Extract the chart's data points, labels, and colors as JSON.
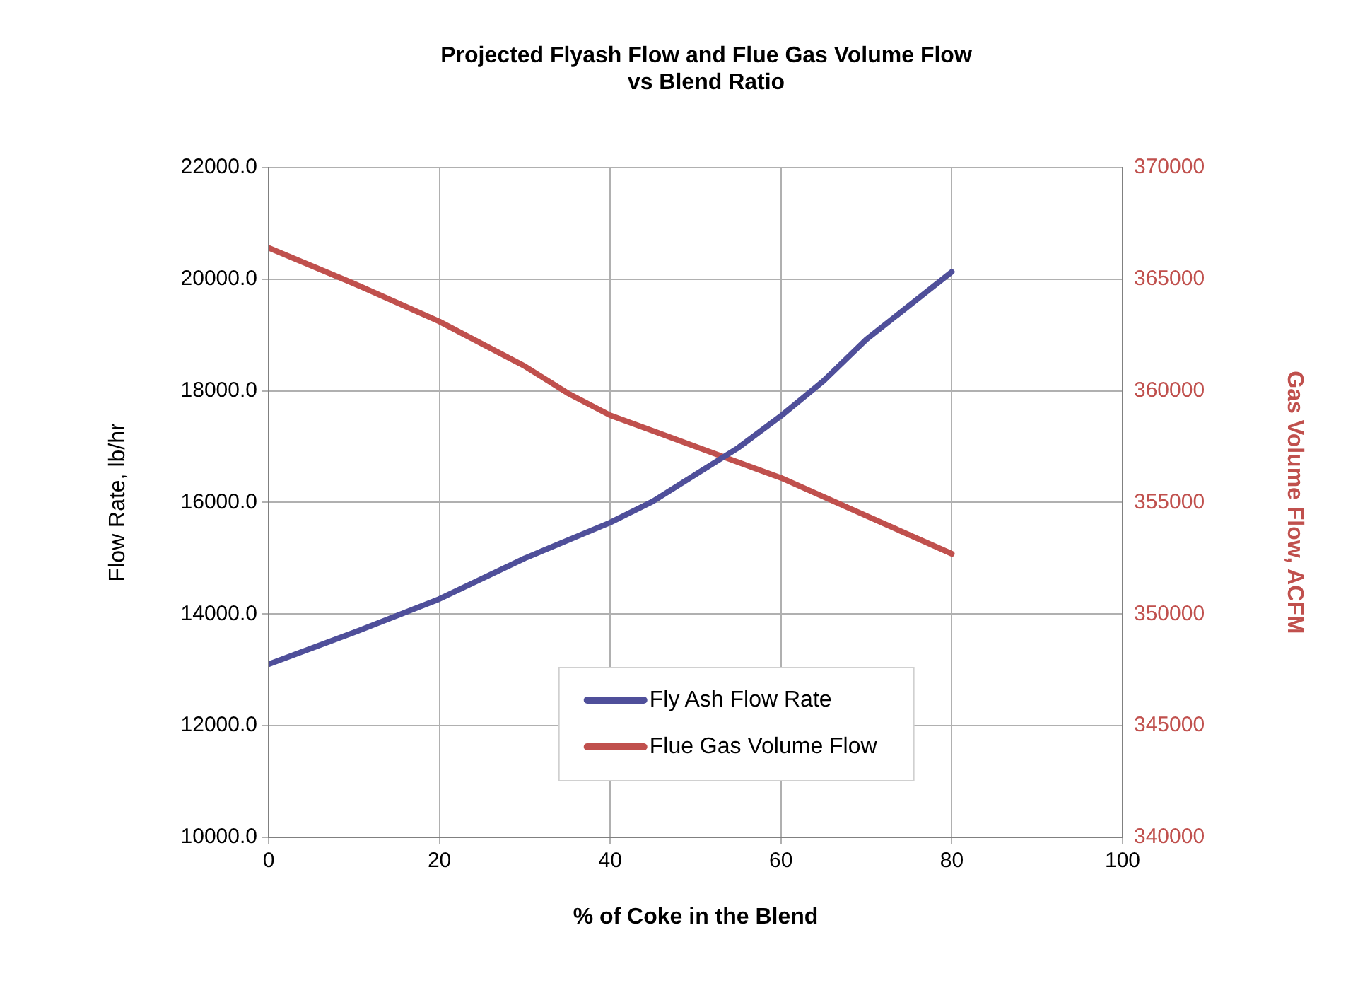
{
  "chart_data": {
    "type": "line",
    "title": "Projected Flyash Flow and Flue Gas Volume Flow\nvs Blend Ratio",
    "xlabel": "% of Coke in the Blend",
    "ylabel": "Flow Rate, lb/hr",
    "y2label": "Gas Volume Flow, ACFM",
    "xlim": [
      0,
      100
    ],
    "xticks": [
      0,
      20,
      40,
      60,
      80,
      100
    ],
    "ylim": [
      10000,
      22000
    ],
    "yticks": [
      {
        "value": 10000,
        "label": "10000.0"
      },
      {
        "value": 12000,
        "label": "12000.0"
      },
      {
        "value": 14000,
        "label": "14000.0"
      },
      {
        "value": 16000,
        "label": "16000.0"
      },
      {
        "value": 18000,
        "label": "18000.0"
      },
      {
        "value": 20000,
        "label": "20000.0"
      },
      {
        "value": 22000,
        "label": "22000.0"
      }
    ],
    "y2lim": [
      340000,
      370000
    ],
    "y2ticks": [
      340000,
      345000,
      350000,
      355000,
      360000,
      365000,
      370000
    ],
    "grid": true,
    "legend": "bottom",
    "marker": "none",
    "line_style": "solid",
    "series": [
      {
        "name": "Fly Ash Flow Rate",
        "color": "#4f4f9a",
        "x": [
          0,
          10,
          20,
          30,
          40,
          45,
          50,
          55,
          60,
          65,
          70,
          80
        ],
        "values": [
          13100,
          13670,
          14270,
          15000,
          15640,
          16020,
          16500,
          16980,
          17550,
          18180,
          18920,
          20130
        ]
      },
      {
        "name": "Flue Gas Volume Flow",
        "color": "#c0504d",
        "axis": "y2",
        "x": [
          0,
          10,
          20,
          30,
          35,
          40,
          45,
          50,
          60,
          70,
          80
        ],
        "values": [
          366400,
          364800,
          363100,
          361100,
          359900,
          358900,
          358200,
          357500,
          356100,
          354400,
          352700
        ]
      }
    ]
  }
}
